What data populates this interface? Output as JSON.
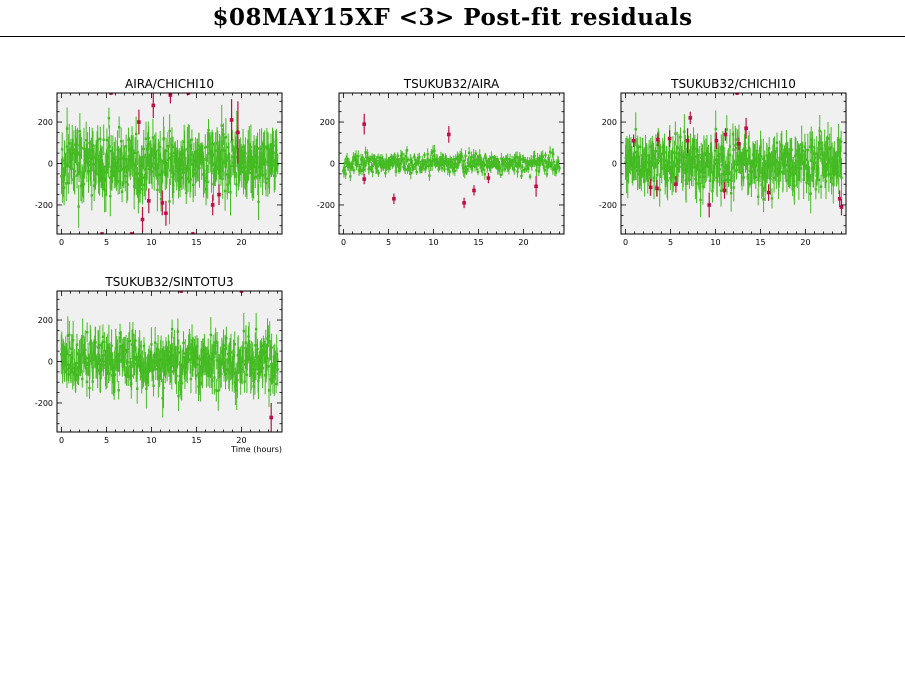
{
  "page": {
    "title": "$08MAY15XF <3> Post-fit residuals"
  },
  "chart_data": [
    {
      "type": "scatter",
      "title": "AIRA/CHICHI10",
      "xlabel": "",
      "ylabel": "",
      "xlim": [
        -0.5,
        24.5
      ],
      "ylim": [
        -340,
        340
      ],
      "xticks": [
        0,
        5,
        10,
        15,
        20
      ],
      "yticks": [
        -200,
        0,
        200
      ],
      "noise_sigma": 70,
      "error_bar": 80,
      "n_points": 420,
      "seed": 11,
      "colors": {
        "good": "#44bb22",
        "outlier": "#bb1144",
        "background": "#f0f0f0"
      },
      "outliers": [
        {
          "x": 5.5,
          "y": 340,
          "err": 10
        },
        {
          "x": 4.5,
          "y": -340,
          "err": 10
        },
        {
          "x": 7.8,
          "y": -340,
          "err": 10
        },
        {
          "x": 8.6,
          "y": 200,
          "err": 60
        },
        {
          "x": 9.0,
          "y": -270,
          "err": 60
        },
        {
          "x": 9.7,
          "y": -180,
          "err": 60
        },
        {
          "x": 10.2,
          "y": 280,
          "err": 60
        },
        {
          "x": 11.2,
          "y": -190,
          "err": 60
        },
        {
          "x": 11.6,
          "y": -240,
          "err": 60
        },
        {
          "x": 12.1,
          "y": 330,
          "err": 40
        },
        {
          "x": 14.1,
          "y": 340,
          "err": 10
        },
        {
          "x": 14.6,
          "y": -340,
          "err": 10
        },
        {
          "x": 16.8,
          "y": -200,
          "err": 50
        },
        {
          "x": 17.5,
          "y": -150,
          "err": 50
        },
        {
          "x": 18.9,
          "y": 210,
          "err": 100
        },
        {
          "x": 19.6,
          "y": 150,
          "err": 150
        }
      ]
    },
    {
      "type": "scatter",
      "title": "TSUKUB32/AIRA",
      "xlabel": "",
      "ylabel": "",
      "xlim": [
        -0.5,
        24.5
      ],
      "ylim": [
        -340,
        340
      ],
      "xticks": [
        0,
        5,
        10,
        15,
        20
      ],
      "yticks": [
        -200,
        0,
        200
      ],
      "noise_sigma": 22,
      "error_bar": 22,
      "n_points": 420,
      "seed": 23,
      "colors": {
        "good": "#44bb22",
        "outlier": "#bb1144",
        "background": "#f0f0f0"
      },
      "outliers": [
        {
          "x": 2.3,
          "y": 190,
          "err": 50
        },
        {
          "x": 2.3,
          "y": -75,
          "err": 25
        },
        {
          "x": 5.6,
          "y": -170,
          "err": 25
        },
        {
          "x": 11.7,
          "y": 140,
          "err": 40
        },
        {
          "x": 13.4,
          "y": -190,
          "err": 25
        },
        {
          "x": 14.5,
          "y": -130,
          "err": 25
        },
        {
          "x": 16.1,
          "y": -70,
          "err": 25
        },
        {
          "x": 21.4,
          "y": -110,
          "err": 50
        }
      ]
    },
    {
      "type": "scatter",
      "title": "TSUKUB32/CHICHI10",
      "xlabel": "",
      "ylabel": "",
      "xlim": [
        -0.5,
        24.5
      ],
      "ylim": [
        -340,
        340
      ],
      "xticks": [
        0,
        5,
        10,
        15,
        20
      ],
      "yticks": [
        -200,
        0,
        200
      ],
      "noise_sigma": 60,
      "error_bar": 70,
      "n_points": 420,
      "seed": 37,
      "colors": {
        "good": "#44bb22",
        "outlier": "#bb1144",
        "background": "#f0f0f0"
      },
      "outliers": [
        {
          "x": 0.9,
          "y": 110,
          "err": 30
        },
        {
          "x": 2.8,
          "y": -115,
          "err": 40
        },
        {
          "x": 3.5,
          "y": -120,
          "err": 40
        },
        {
          "x": 3.6,
          "y": 115,
          "err": 30
        },
        {
          "x": 4.9,
          "y": 120,
          "err": 40
        },
        {
          "x": 5.6,
          "y": -100,
          "err": 40
        },
        {
          "x": 6.9,
          "y": 110,
          "err": 60
        },
        {
          "x": 7.2,
          "y": 220,
          "err": 30
        },
        {
          "x": 9.3,
          "y": -200,
          "err": 60
        },
        {
          "x": 10.1,
          "y": 110,
          "err": 40
        },
        {
          "x": 11.0,
          "y": -130,
          "err": 40
        },
        {
          "x": 11.1,
          "y": 140,
          "err": 30
        },
        {
          "x": 12.4,
          "y": 340,
          "err": 10
        },
        {
          "x": 12.6,
          "y": 95,
          "err": 30
        },
        {
          "x": 13.4,
          "y": 170,
          "err": 50
        },
        {
          "x": 15.9,
          "y": -140,
          "err": 40
        },
        {
          "x": 23.8,
          "y": -170,
          "err": 40
        },
        {
          "x": 24.0,
          "y": -210,
          "err": 40
        }
      ]
    },
    {
      "type": "scatter",
      "title": "TSUKUB32/SINTOTU3",
      "xlabel": "Time (hours)",
      "ylabel": "",
      "xlim": [
        -0.5,
        24.5
      ],
      "ylim": [
        -340,
        340
      ],
      "xticks": [
        0,
        5,
        10,
        15,
        20
      ],
      "yticks": [
        -200,
        0,
        200
      ],
      "noise_sigma": 60,
      "error_bar": 70,
      "n_points": 420,
      "seed": 53,
      "colors": {
        "good": "#44bb22",
        "outlier": "#bb1144",
        "background": "#f0f0f0"
      },
      "outliers": [
        {
          "x": 13.3,
          "y": 340,
          "err": 10
        },
        {
          "x": 20.0,
          "y": 340,
          "err": 10
        },
        {
          "x": 23.3,
          "y": -270,
          "err": 70
        }
      ]
    }
  ]
}
